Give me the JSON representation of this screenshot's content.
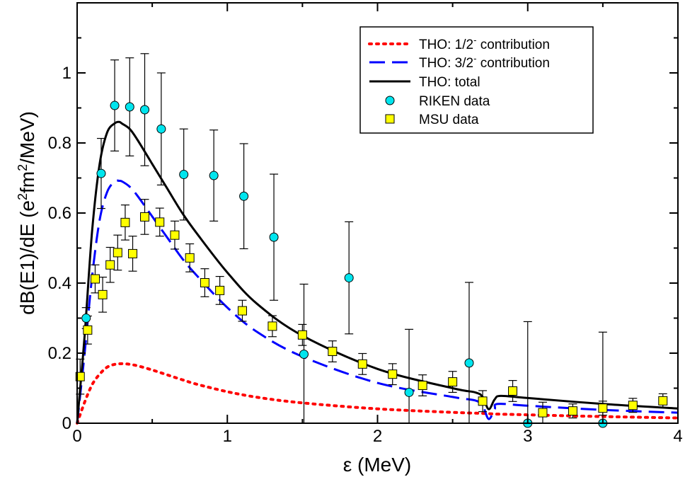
{
  "chart_data": {
    "type": "scatter",
    "xlabel": "ε  (MeV)",
    "ylabel_parts": [
      "dB(E1)/dE (e",
      "2",
      "fm",
      "2",
      "/MeV)"
    ],
    "xlim": [
      0,
      4
    ],
    "ylim": [
      0,
      1.2
    ],
    "xticks": [
      0,
      1,
      2,
      3,
      4
    ],
    "yticks": [
      0,
      0.2,
      0.4,
      0.6,
      0.8,
      1
    ],
    "xtick_labels": [
      "0",
      "1",
      "2",
      "3",
      "4"
    ],
    "ytick_labels": [
      "0",
      "0.2",
      "0.4",
      "0.6",
      "0.8",
      "1"
    ],
    "grid": false,
    "legend_position": "top-right",
    "legend": {
      "half_label": [
        "THO: 1/2",
        "-",
        " contribution"
      ],
      "threehalf_label": [
        "THO: 3/2",
        "-",
        " contribution"
      ],
      "total_label": "THO: total",
      "riken_label": "RIKEN data",
      "msu_label": "MSU data"
    },
    "colors": {
      "half": "#ff0000",
      "threehalf": "#0000ff",
      "total": "#000000",
      "riken": "#00e5ee",
      "msu": "#ffff00"
    },
    "series": [
      {
        "id": "half",
        "style": "dotted",
        "x": [
          0,
          0.05,
          0.1,
          0.15,
          0.2,
          0.25,
          0.3,
          0.35,
          0.4,
          0.5,
          0.6,
          0.7,
          0.8,
          1.0,
          1.2,
          1.5,
          2.0,
          2.5,
          2.7,
          2.75,
          2.8,
          3.0,
          3.5,
          4.0
        ],
        "y": [
          0,
          0.06,
          0.11,
          0.14,
          0.16,
          0.168,
          0.17,
          0.168,
          0.164,
          0.152,
          0.138,
          0.124,
          0.111,
          0.09,
          0.074,
          0.058,
          0.041,
          0.031,
          0.028,
          0.027,
          0.026,
          0.024,
          0.019,
          0.015
        ]
      },
      {
        "id": "threehalf",
        "style": "dashed",
        "x": [
          0,
          0.05,
          0.1,
          0.15,
          0.2,
          0.25,
          0.28,
          0.3,
          0.35,
          0.4,
          0.5,
          0.6,
          0.7,
          0.8,
          1.0,
          1.2,
          1.5,
          2.0,
          2.5,
          2.65,
          2.7,
          2.74,
          2.78,
          2.8,
          3.0,
          3.5,
          4.0
        ],
        "y": [
          0,
          0.2,
          0.42,
          0.58,
          0.66,
          0.69,
          0.692,
          0.69,
          0.675,
          0.65,
          0.59,
          0.53,
          0.47,
          0.42,
          0.33,
          0.26,
          0.19,
          0.115,
          0.075,
          0.065,
          0.05,
          0.012,
          0.04,
          0.055,
          0.05,
          0.038,
          0.03
        ]
      },
      {
        "id": "total",
        "style": "solid",
        "x": [
          0,
          0.05,
          0.1,
          0.15,
          0.2,
          0.25,
          0.28,
          0.3,
          0.35,
          0.4,
          0.5,
          0.6,
          0.7,
          0.8,
          1.0,
          1.2,
          1.5,
          2.0,
          2.5,
          2.65,
          2.7,
          2.74,
          2.78,
          2.82,
          3.0,
          3.5,
          4.0
        ],
        "y": [
          0,
          0.25,
          0.55,
          0.74,
          0.83,
          0.856,
          0.86,
          0.855,
          0.84,
          0.81,
          0.74,
          0.67,
          0.6,
          0.54,
          0.43,
          0.34,
          0.25,
          0.155,
          0.1,
          0.088,
          0.075,
          0.04,
          0.068,
          0.078,
          0.072,
          0.055,
          0.042
        ]
      }
    ],
    "riken_points": [
      {
        "x": 0.06,
        "y": 0.3,
        "err": 0.03
      },
      {
        "x": 0.16,
        "y": 0.713,
        "err": 0.1
      },
      {
        "x": 0.25,
        "y": 0.907,
        "err": 0.13
      },
      {
        "x": 0.35,
        "y": 0.903,
        "err": 0.14
      },
      {
        "x": 0.45,
        "y": 0.895,
        "err": 0.16
      },
      {
        "x": 0.56,
        "y": 0.84,
        "err": 0.16
      },
      {
        "x": 0.71,
        "y": 0.71,
        "err": 0.13
      },
      {
        "x": 0.91,
        "y": 0.707,
        "err": 0.13
      },
      {
        "x": 1.11,
        "y": 0.648,
        "err": 0.15
      },
      {
        "x": 1.31,
        "y": 0.531,
        "err": 0.18
      },
      {
        "x": 1.51,
        "y": 0.197,
        "err": 0.2
      },
      {
        "x": 1.81,
        "y": 0.415,
        "err": 0.16
      },
      {
        "x": 2.21,
        "y": 0.088,
        "err": 0.18
      },
      {
        "x": 2.61,
        "y": 0.172,
        "err": 0.23
      },
      {
        "x": 3.0,
        "y": 0.0,
        "err": 0.29
      },
      {
        "x": 3.5,
        "y": 0.0,
        "err": 0.26
      }
    ],
    "msu_points": [
      {
        "x": 0.02,
        "y": 0.133,
        "err": 0.05
      },
      {
        "x": 0.07,
        "y": 0.266,
        "err": 0.04
      },
      {
        "x": 0.12,
        "y": 0.412,
        "err": 0.04
      },
      {
        "x": 0.17,
        "y": 0.367,
        "err": 0.05
      },
      {
        "x": 0.22,
        "y": 0.452,
        "err": 0.05
      },
      {
        "x": 0.27,
        "y": 0.487,
        "err": 0.05
      },
      {
        "x": 0.32,
        "y": 0.573,
        "err": 0.05
      },
      {
        "x": 0.37,
        "y": 0.484,
        "err": 0.05
      },
      {
        "x": 0.45,
        "y": 0.589,
        "err": 0.05
      },
      {
        "x": 0.55,
        "y": 0.574,
        "err": 0.04
      },
      {
        "x": 0.65,
        "y": 0.537,
        "err": 0.04
      },
      {
        "x": 0.75,
        "y": 0.472,
        "err": 0.04
      },
      {
        "x": 0.85,
        "y": 0.401,
        "err": 0.04
      },
      {
        "x": 0.95,
        "y": 0.379,
        "err": 0.04
      },
      {
        "x": 1.1,
        "y": 0.321,
        "err": 0.03
      },
      {
        "x": 1.3,
        "y": 0.277,
        "err": 0.03
      },
      {
        "x": 1.5,
        "y": 0.252,
        "err": 0.03
      },
      {
        "x": 1.7,
        "y": 0.205,
        "err": 0.03
      },
      {
        "x": 1.9,
        "y": 0.169,
        "err": 0.03
      },
      {
        "x": 2.1,
        "y": 0.14,
        "err": 0.03
      },
      {
        "x": 2.3,
        "y": 0.108,
        "err": 0.03
      },
      {
        "x": 2.5,
        "y": 0.118,
        "err": 0.03
      },
      {
        "x": 2.7,
        "y": 0.063,
        "err": 0.03
      },
      {
        "x": 2.9,
        "y": 0.092,
        "err": 0.03
      },
      {
        "x": 3.1,
        "y": 0.03,
        "err": 0.03
      },
      {
        "x": 3.3,
        "y": 0.035,
        "err": 0.02
      },
      {
        "x": 3.5,
        "y": 0.043,
        "err": 0.02
      },
      {
        "x": 3.7,
        "y": 0.051,
        "err": 0.02
      },
      {
        "x": 3.9,
        "y": 0.064,
        "err": 0.02
      }
    ]
  }
}
